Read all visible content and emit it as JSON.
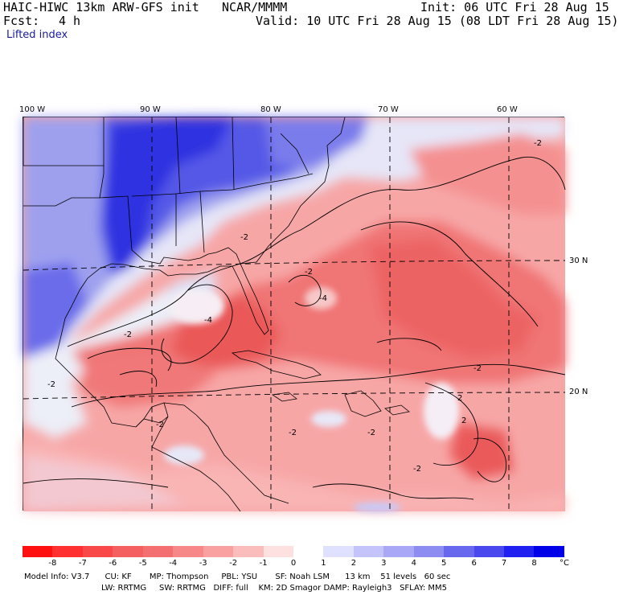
{
  "header": {
    "model": "HAIC-HIWC 13km ARW-GFS init",
    "org": "NCAR/MMMM",
    "init": "Init: 06 UTC Fri 28 Aug 15",
    "fcst_label": "Fcst:",
    "fcst_value": "4 h",
    "valid": "Valid: 10 UTC Fri 28 Aug 15 (08 LDT Fri 28 Aug 15)",
    "field": "Lifted index"
  },
  "map": {
    "lon_labels": [
      "100 W",
      "90 W",
      "80 W",
      "70 W",
      "60 W"
    ],
    "lat_labels": [
      "30 N",
      "20 N"
    ],
    "contour_labels": [
      "-2",
      "-2",
      "-2",
      "-2",
      "-4",
      "-4",
      "-2",
      "-2",
      "2",
      "2",
      "-2",
      "-2",
      "-2",
      "-2"
    ]
  },
  "colorbar": {
    "ticks": [
      "-8",
      "-7",
      "-6",
      "-5",
      "-4",
      "-3",
      "-2",
      "-1",
      "0",
      "1",
      "2",
      "3",
      "4",
      "5",
      "6",
      "7",
      "8"
    ],
    "unit": "°C",
    "colors": [
      "#ff1010",
      "#ff3030",
      "#f94848",
      "#f46060",
      "#f47070",
      "#f78888",
      "#f9a0a0",
      "#fbbcbc",
      "#fde0e0",
      "#ffffff",
      "#e0e0ff",
      "#c4c4fb",
      "#a8a8f6",
      "#8c8cf1",
      "#6868ee",
      "#4848ee",
      "#2020f0",
      "#0000e8"
    ]
  },
  "info": {
    "line1": "Model Info: V3.7      CU: KF       MP: Thompson     PBL: YSU       SF: Noah LSM      13 km    51 levels   60 sec",
    "line2": "LW: RRTMG     SW: RRTMG   DIFF: full    KM: 2D Smagor DAMP: Rayleigh3   SFLAY: MM5"
  }
}
